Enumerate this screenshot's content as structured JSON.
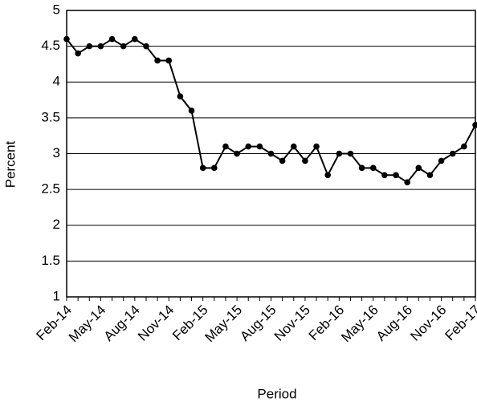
{
  "chart_data": {
    "type": "line",
    "x_label": "Period",
    "y_label": "Percent",
    "categories": [
      "Feb-14",
      null,
      null,
      "May-14",
      null,
      null,
      "Aug-14",
      null,
      null,
      "Nov-14",
      null,
      null,
      "Feb-15",
      null,
      null,
      "May-15",
      null,
      null,
      "Aug-15",
      null,
      null,
      "Nov-15",
      null,
      null,
      "Feb-16",
      null,
      null,
      "May-16",
      null,
      null,
      "Aug-16",
      null,
      null,
      "Nov-16",
      null,
      null,
      "Feb-17"
    ],
    "values": [
      4.6,
      4.4,
      4.5,
      4.5,
      4.6,
      4.5,
      4.6,
      4.5,
      4.3,
      4.3,
      3.8,
      3.6,
      2.8,
      2.8,
      3.1,
      3.0,
      3.1,
      3.1,
      3.0,
      2.9,
      3.1,
      2.9,
      3.1,
      2.7,
      3.0,
      3.0,
      2.8,
      2.8,
      2.7,
      2.7,
      2.6,
      2.8,
      2.7,
      2.9,
      3.0,
      3.1,
      3.4
    ],
    "color": "#000000",
    "ylim": [
      1,
      5
    ],
    "yticks": [
      1,
      1.5,
      2,
      2.5,
      3,
      3.5,
      4,
      4.5,
      5
    ],
    "grid": true
  }
}
